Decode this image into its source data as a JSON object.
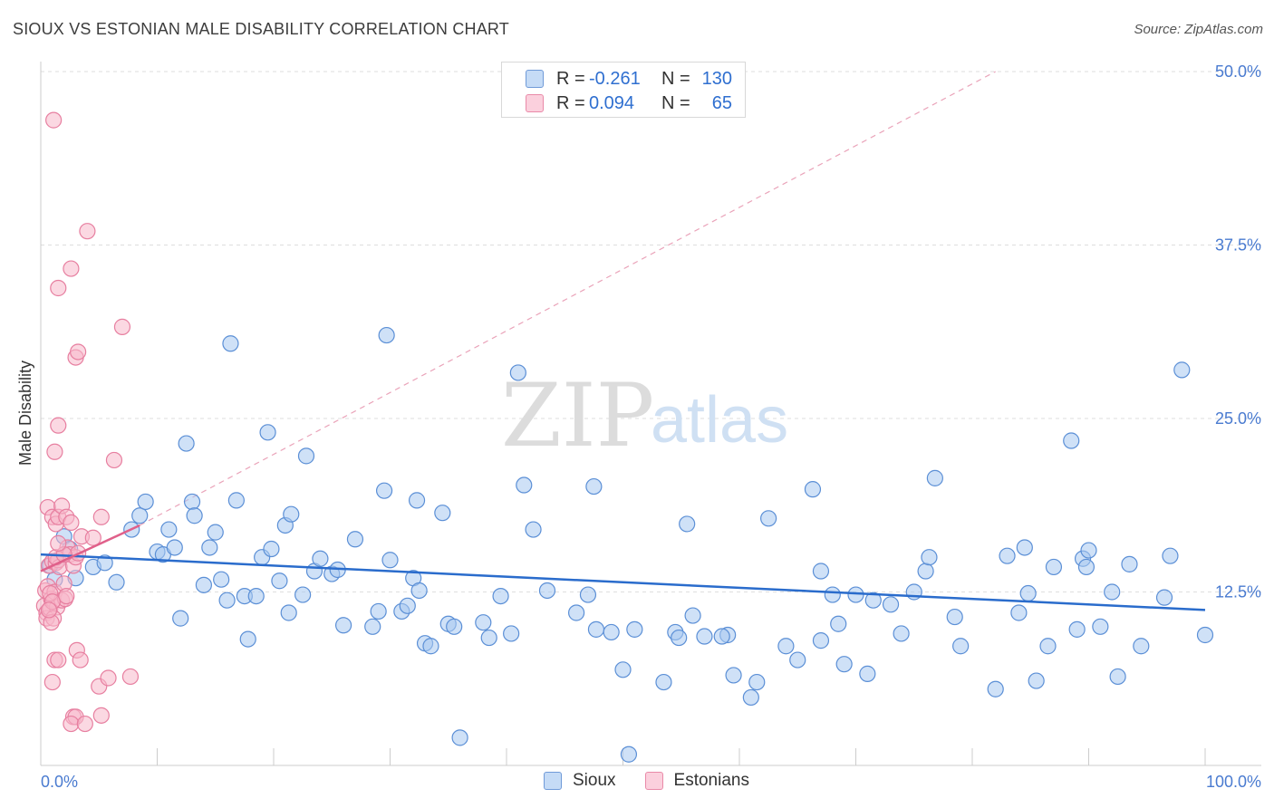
{
  "title": "SIOUX VS ESTONIAN MALE DISABILITY CORRELATION CHART",
  "source": "Source: ZipAtlas.com",
  "watermark": {
    "zip": "ZIP",
    "atlas": "atlas"
  },
  "colors": {
    "sioux_fill": "#a8c8f0",
    "sioux_stroke": "#5b8fd6",
    "sioux_line": "#2a6ccc",
    "estonian_fill": "#f7b8cb",
    "estonian_stroke": "#e77fa0",
    "estonian_line": "#e0608a",
    "grid": "#dedede",
    "tick_text": "#4a7bd0"
  },
  "legend": {
    "rows": [
      {
        "r_label": "R =",
        "r_value": "-0.261",
        "n_label": "N =",
        "n_value": "130",
        "series": "sioux"
      },
      {
        "r_label": "R =",
        "r_value": "0.094",
        "n_label": "N =",
        "n_value": "65",
        "series": "estonian"
      }
    ]
  },
  "bottom_legend": [
    {
      "label": "Sioux",
      "series": "sioux"
    },
    {
      "label": "Estonians",
      "series": "estonian"
    }
  ],
  "chart_data": {
    "type": "scatter",
    "title": "SIOUX VS ESTONIAN MALE DISABILITY CORRELATION CHART",
    "xlabel": "",
    "ylabel": "Male Disability",
    "xlim": [
      0,
      100
    ],
    "ylim": [
      0,
      50
    ],
    "x_tick_labels": [
      {
        "value": 0,
        "label": "0.0%"
      },
      {
        "value": 100,
        "label": "100.0%"
      }
    ],
    "y_ticks": [
      {
        "value": 12.5,
        "label": "12.5%"
      },
      {
        "value": 25.0,
        "label": "25.0%"
      },
      {
        "value": 37.5,
        "label": "37.5%"
      },
      {
        "value": 50.0,
        "label": "50.0%"
      }
    ],
    "series": [
      {
        "name": "Sioux",
        "r": -0.261,
        "n": 130,
        "trend": {
          "x": [
            0,
            100
          ],
          "y": [
            15.2,
            11.2
          ]
        },
        "points": [
          [
            0.8,
            14.4
          ],
          [
            1.2,
            13.4
          ],
          [
            2,
            16.5
          ],
          [
            1.5,
            14.8
          ],
          [
            3,
            13.5
          ],
          [
            2.5,
            15.6
          ],
          [
            4.5,
            14.3
          ],
          [
            5.5,
            14.6
          ],
          [
            6.5,
            13.2
          ],
          [
            7.8,
            17.0
          ],
          [
            8.5,
            18.0
          ],
          [
            9,
            19.0
          ],
          [
            10,
            15.4
          ],
          [
            10.5,
            15.2
          ],
          [
            11,
            17.0
          ],
          [
            11.5,
            15.7
          ],
          [
            12,
            10.6
          ],
          [
            12.5,
            23.2
          ],
          [
            13,
            19.0
          ],
          [
            13.2,
            18.0
          ],
          [
            14,
            13.0
          ],
          [
            14.5,
            15.7
          ],
          [
            15,
            16.8
          ],
          [
            15.5,
            13.4
          ],
          [
            16,
            11.9
          ],
          [
            16.3,
            30.4
          ],
          [
            16.8,
            19.1
          ],
          [
            17.5,
            12.2
          ],
          [
            17.8,
            9.1
          ],
          [
            18.5,
            12.2
          ],
          [
            19,
            15.0
          ],
          [
            19.5,
            24.0
          ],
          [
            19.8,
            15.6
          ],
          [
            20.5,
            13.3
          ],
          [
            21,
            17.3
          ],
          [
            21.5,
            18.1
          ],
          [
            21.3,
            11.0
          ],
          [
            22.5,
            12.3
          ],
          [
            22.8,
            22.3
          ],
          [
            23.5,
            14.0
          ],
          [
            24,
            14.9
          ],
          [
            25,
            13.8
          ],
          [
            25.5,
            14.1
          ],
          [
            26,
            10.1
          ],
          [
            27,
            16.3
          ],
          [
            29,
            11.1
          ],
          [
            29.5,
            19.8
          ],
          [
            29.7,
            31.0
          ],
          [
            30,
            14.8
          ],
          [
            31,
            11.1
          ],
          [
            31.5,
            11.5
          ],
          [
            32,
            13.5
          ],
          [
            32.5,
            12.6
          ],
          [
            32.3,
            19.1
          ],
          [
            33,
            8.8
          ],
          [
            33.5,
            8.6
          ],
          [
            34.5,
            18.2
          ],
          [
            35,
            10.2
          ],
          [
            35.5,
            10.0
          ],
          [
            36,
            2.0
          ],
          [
            38,
            10.3
          ],
          [
            38.5,
            9.2
          ],
          [
            39.5,
            12.2
          ],
          [
            41,
            28.3
          ],
          [
            41.5,
            20.2
          ],
          [
            42.3,
            17.0
          ],
          [
            43.5,
            12.6
          ],
          [
            46,
            11.0
          ],
          [
            47,
            12.3
          ],
          [
            47.5,
            20.1
          ],
          [
            49,
            9.6
          ],
          [
            50,
            6.9
          ],
          [
            50.5,
            0.8
          ],
          [
            51,
            9.8
          ],
          [
            53.5,
            6.0
          ],
          [
            54.5,
            9.6
          ],
          [
            54.8,
            9.2
          ],
          [
            55.5,
            17.4
          ],
          [
            56,
            10.8
          ],
          [
            57,
            9.3
          ],
          [
            59,
            9.4
          ],
          [
            59.5,
            6.5
          ],
          [
            61,
            4.9
          ],
          [
            61.5,
            6.0
          ],
          [
            62.5,
            17.8
          ],
          [
            64,
            8.6
          ],
          [
            65,
            7.6
          ],
          [
            66.3,
            19.9
          ],
          [
            67,
            9.0
          ],
          [
            68,
            12.3
          ],
          [
            68.5,
            10.2
          ],
          [
            69,
            7.3
          ],
          [
            70,
            12.3
          ],
          [
            71,
            6.6
          ],
          [
            71.5,
            11.9
          ],
          [
            73,
            11.6
          ],
          [
            75,
            12.5
          ],
          [
            76,
            14.0
          ],
          [
            76.3,
            15.0
          ],
          [
            76.8,
            20.7
          ],
          [
            78.5,
            10.7
          ],
          [
            79,
            8.6
          ],
          [
            82,
            5.5
          ],
          [
            83,
            15.1
          ],
          [
            84,
            11.0
          ],
          [
            84.5,
            15.7
          ],
          [
            85.5,
            6.1
          ],
          [
            86.5,
            8.6
          ],
          [
            87,
            14.3
          ],
          [
            88.5,
            23.4
          ],
          [
            89,
            9.8
          ],
          [
            89.5,
            14.9
          ],
          [
            89.8,
            14.3
          ],
          [
            90,
            15.5
          ],
          [
            91,
            10.0
          ],
          [
            92.5,
            6.4
          ],
          [
            92,
            12.5
          ],
          [
            93.5,
            14.5
          ],
          [
            94.5,
            8.6
          ],
          [
            96.5,
            12.1
          ],
          [
            97,
            15.1
          ],
          [
            98,
            28.5
          ],
          [
            100,
            9.4
          ],
          [
            67,
            14.0
          ],
          [
            47.7,
            9.8
          ],
          [
            40.4,
            9.5
          ],
          [
            28.5,
            10.0
          ],
          [
            58.5,
            9.3
          ],
          [
            73.9,
            9.5
          ],
          [
            84.8,
            12.4
          ]
        ]
      },
      {
        "name": "Estonians",
        "r": 0.094,
        "n": 65,
        "trend": {
          "x": [
            0,
            8.5
          ],
          "y": [
            14.0,
            17.3
          ]
        },
        "points": [
          [
            0.3,
            11.5
          ],
          [
            0.4,
            12.6
          ],
          [
            0.5,
            11.0
          ],
          [
            0.5,
            10.6
          ],
          [
            0.6,
            12.9
          ],
          [
            0.7,
            14.4
          ],
          [
            0.8,
            11.3
          ],
          [
            0.9,
            12.0
          ],
          [
            1.0,
            14.7
          ],
          [
            1.1,
            11.9
          ],
          [
            1.2,
            12.5
          ],
          [
            1.3,
            14.6
          ],
          [
            1.4,
            11.4
          ],
          [
            1.5,
            14.8
          ],
          [
            1.6,
            14.3
          ],
          [
            1.8,
            11.9
          ],
          [
            2.0,
            13.1
          ],
          [
            2.1,
            12.0
          ],
          [
            2.2,
            12.2
          ],
          [
            2.3,
            15.7
          ],
          [
            2.5,
            15.2
          ],
          [
            2.8,
            14.4
          ],
          [
            3.0,
            15.0
          ],
          [
            0.6,
            18.6
          ],
          [
            1.0,
            17.9
          ],
          [
            1.3,
            17.4
          ],
          [
            1.5,
            17.9
          ],
          [
            1.8,
            18.7
          ],
          [
            2.2,
            17.9
          ],
          [
            2.6,
            17.5
          ],
          [
            3.2,
            15.3
          ],
          [
            3.5,
            16.5
          ],
          [
            4.5,
            16.4
          ],
          [
            5.2,
            17.9
          ],
          [
            1.2,
            22.6
          ],
          [
            1.5,
            24.5
          ],
          [
            3.0,
            29.4
          ],
          [
            3.2,
            29.8
          ],
          [
            2.6,
            35.8
          ],
          [
            1.5,
            34.4
          ],
          [
            4.0,
            38.5
          ],
          [
            6.3,
            22.0
          ],
          [
            7.0,
            31.6
          ],
          [
            1.1,
            46.5
          ],
          [
            1.0,
            6.0
          ],
          [
            1.2,
            7.6
          ],
          [
            1.5,
            7.6
          ],
          [
            3.1,
            8.3
          ],
          [
            3.4,
            7.6
          ],
          [
            1.1,
            10.6
          ],
          [
            0.9,
            10.3
          ],
          [
            2.8,
            3.5
          ],
          [
            3.0,
            3.5
          ],
          [
            2.6,
            3.0
          ],
          [
            3.8,
            3.0
          ],
          [
            5.2,
            3.6
          ],
          [
            5.0,
            5.7
          ],
          [
            5.8,
            6.3
          ],
          [
            7.7,
            6.4
          ],
          [
            1.3,
            15.0
          ],
          [
            2.0,
            15.2
          ],
          [
            0.8,
            12.4
          ],
          [
            1.0,
            11.8
          ],
          [
            0.7,
            11.2
          ],
          [
            1.5,
            16.0
          ]
        ]
      }
    ]
  }
}
